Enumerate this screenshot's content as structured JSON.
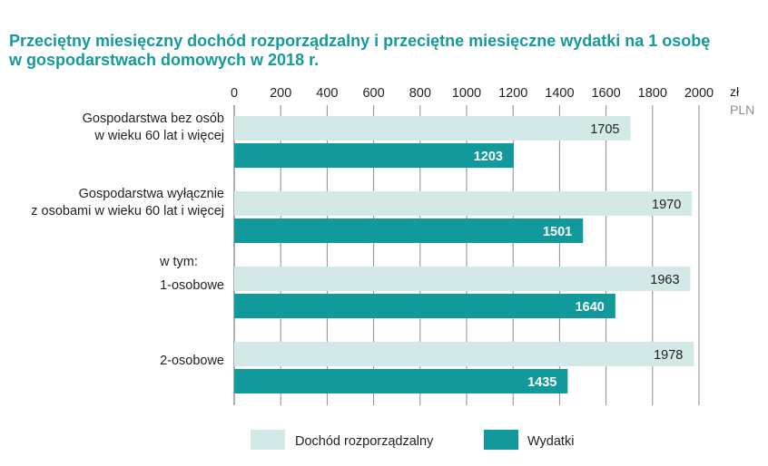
{
  "title": {
    "line1": "Przeciętny miesięczny dochód rozporządzalny i przeciętne miesięczne wydatki na 1 osobę",
    "line2": "w gospodarstwach domowych w 2018 r."
  },
  "unit": {
    "pl": "zł",
    "en": "PLN"
  },
  "colors": {
    "income": "#d2e9e7",
    "expenses": "#12999c",
    "title": "#159a9c",
    "grid": "#8a8c8e"
  },
  "chart_data": {
    "type": "bar",
    "orientation": "horizontal",
    "title": "Przeciętny miesięczny dochód rozporządzalny i przeciętne miesięczne wydatki na 1 osobę w gospodarstwach domowych w 2018 r.",
    "xlim": [
      0,
      2000
    ],
    "ticks": [
      0,
      200,
      400,
      600,
      800,
      1000,
      1200,
      1400,
      1600,
      1800,
      2000
    ],
    "grid": true,
    "legend_position": "bottom",
    "categories": [
      {
        "lines": [
          "Gospodarstwa bez osób",
          "w wieku 60 lat i więcej"
        ]
      },
      {
        "lines": [
          "Gospodarstwa wyłącznie",
          "z osobami w wieku 60 lat i więcej"
        ]
      },
      {
        "lines": [
          "1-osobowe"
        ],
        "prefix": "w tym:"
      },
      {
        "lines": [
          "2-osobowe"
        ]
      }
    ],
    "series": [
      {
        "name": "Dochód rozporządzalny",
        "values": [
          1705,
          1970,
          1963,
          1978
        ]
      },
      {
        "name": "Wydatki",
        "values": [
          1203,
          1501,
          1640,
          1435
        ]
      }
    ]
  }
}
